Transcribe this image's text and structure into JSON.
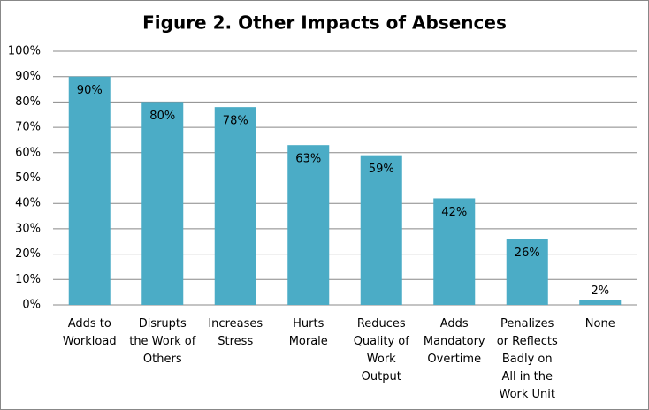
{
  "chart_data": {
    "type": "bar",
    "title": "Figure 2. Other Impacts of Absences",
    "categories": [
      "Adds to Workload",
      "Disrupts the Work of Others",
      "Increases Stress",
      "Hurts Morale",
      "Reduces Quality of Work Output",
      "Adds Mandatory Overtime",
      "Penalizes or Reflects Badly on All in the Work Unit",
      "None"
    ],
    "values": [
      90,
      80,
      78,
      63,
      59,
      42,
      26,
      2
    ],
    "value_labels": [
      "90%",
      "80%",
      "78%",
      "63%",
      "59%",
      "42%",
      "26%",
      "2%"
    ],
    "color": "#4bacc6",
    "ylim": [
      0,
      100
    ],
    "yticks": [
      {
        "value": 0,
        "label": "0%"
      },
      {
        "value": 10,
        "label": "10%"
      },
      {
        "value": 20,
        "label": "20%"
      },
      {
        "value": 30,
        "label": "30%"
      },
      {
        "value": 40,
        "label": "40%"
      },
      {
        "value": 50,
        "label": "50%"
      },
      {
        "value": 60,
        "label": "60%"
      },
      {
        "value": 70,
        "label": "70%"
      },
      {
        "value": 80,
        "label": "80%"
      },
      {
        "value": 90,
        "label": "90%"
      },
      {
        "value": 100,
        "label": "100%"
      }
    ],
    "grid": true
  }
}
